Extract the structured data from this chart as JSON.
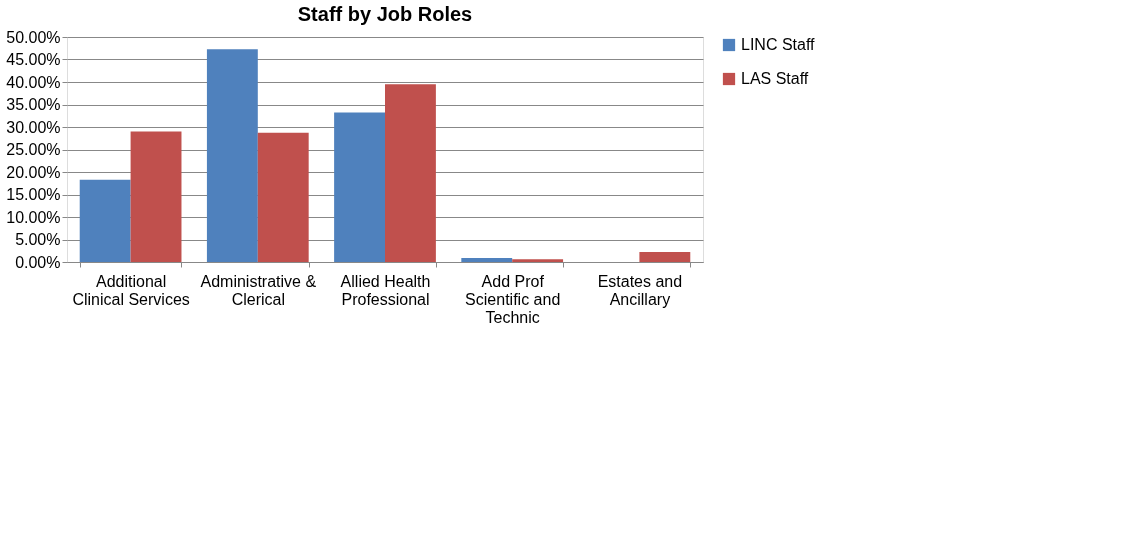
{
  "chart_data": {
    "type": "bar",
    "title": "Staff by Job Roles",
    "categories": [
      "Additional\nClinical Services",
      "Administrative &\nClerical",
      "Allied Health\nProfessional",
      "Add Prof\nScientific and\nTechnic",
      "Estates and\nAncillary"
    ],
    "series": [
      {
        "name": "LINC Staff",
        "color": "#4f81bd",
        "values": [
          18.3,
          47.3,
          33.2,
          0.9,
          0
        ]
      },
      {
        "name": "LAS Staff",
        "color": "#c0504d",
        "values": [
          29.0,
          28.7,
          39.5,
          0.6,
          2.2
        ]
      }
    ],
    "ylim": [
      0,
      50
    ],
    "yticks": [
      {
        "value": 0,
        "label": "0.00%"
      },
      {
        "value": 5,
        "label": "5.00%"
      },
      {
        "value": 10,
        "label": "10.00%"
      },
      {
        "value": 15,
        "label": "15.00%"
      },
      {
        "value": 20,
        "label": "20.00%"
      },
      {
        "value": 25,
        "label": "25.00%"
      },
      {
        "value": 30,
        "label": "30.00%"
      },
      {
        "value": 35,
        "label": "35.00%"
      },
      {
        "value": 40,
        "label": "40.00%"
      },
      {
        "value": 45,
        "label": "45.00%"
      },
      {
        "value": 50,
        "label": "50.00%"
      }
    ],
    "grid": "y",
    "legend": "right"
  }
}
